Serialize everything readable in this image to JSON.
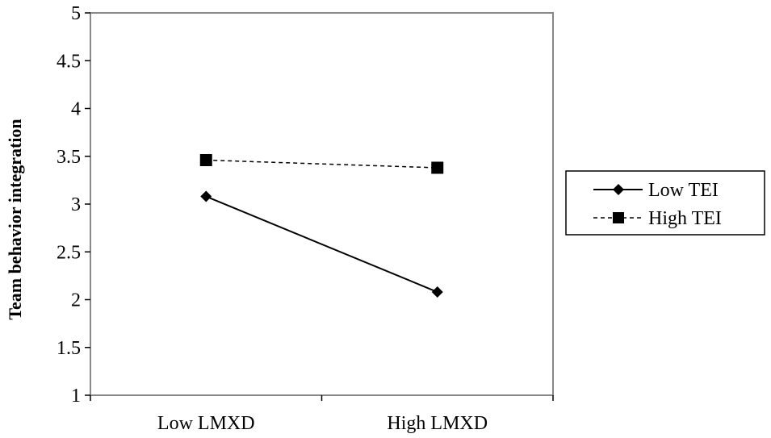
{
  "chart_data": {
    "type": "line",
    "title": "",
    "xlabel": "",
    "ylabel": "Team behavior integration",
    "categories": [
      "Low LMXD",
      "High LMXD"
    ],
    "ylim": [
      1,
      5
    ],
    "yticks": [
      "1",
      "1.5",
      "2",
      "2.5",
      "3",
      "3.5",
      "4",
      "4.5",
      "5"
    ],
    "grid": false,
    "legend_position": "right",
    "series": [
      {
        "name": "Low TEI",
        "values": [
          3.08,
          2.08
        ],
        "marker": "diamond",
        "line_style": "solid",
        "color": "#000000"
      },
      {
        "name": "High TEI",
        "values": [
          3.46,
          3.38
        ],
        "marker": "square",
        "line_style": "dashed",
        "color": "#000000"
      }
    ]
  }
}
